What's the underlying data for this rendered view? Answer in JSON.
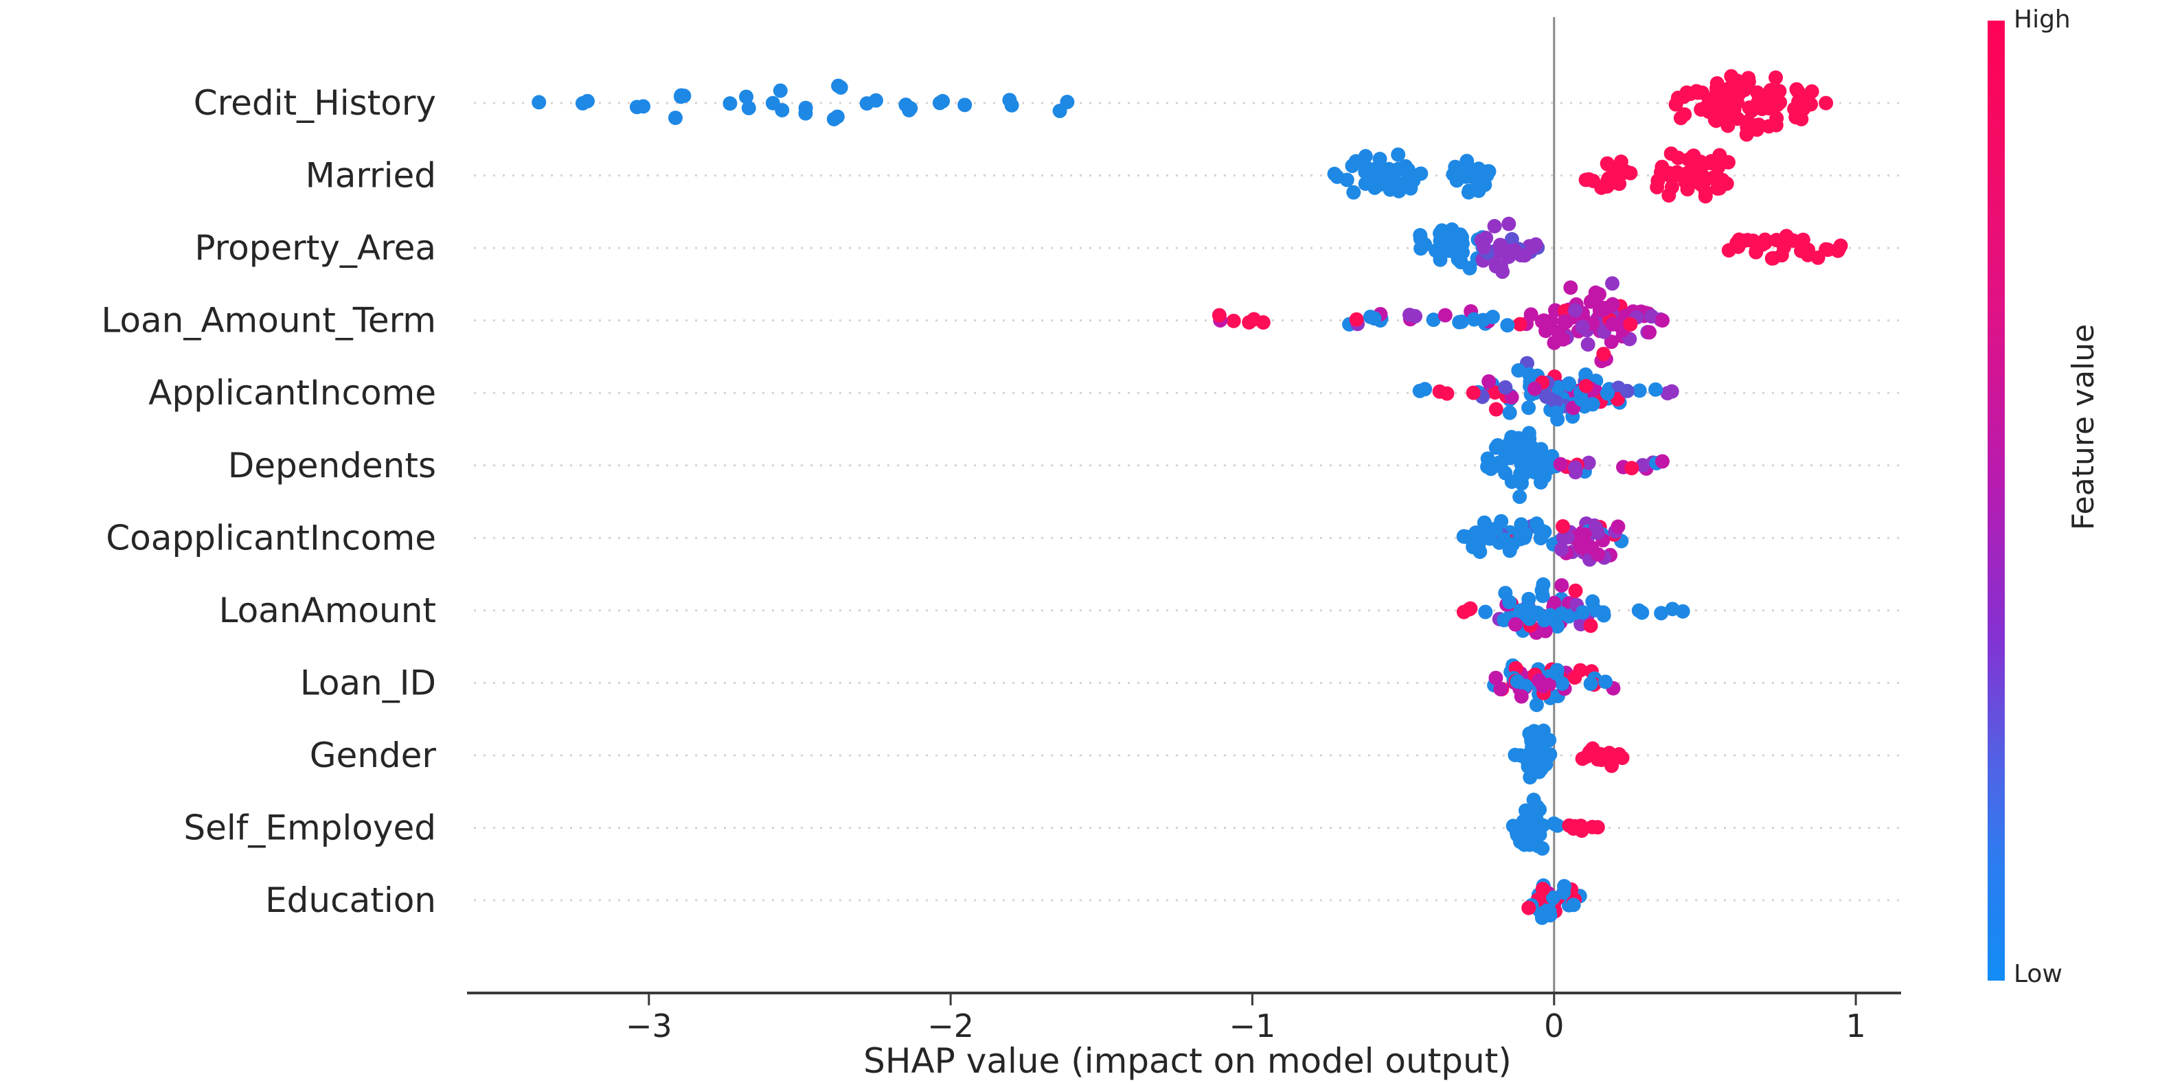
{
  "chart_data": {
    "type": "beeswarm",
    "title": "",
    "xlabel": "SHAP value (impact on model output)",
    "ylabel": "",
    "x_ticks": [
      -3,
      -2,
      -1,
      0,
      1
    ],
    "xlim": [
      -3.58,
      1.15
    ],
    "grid": "dotted-horizontal",
    "legend_position": "right-colorbar",
    "zero_line_color": "#888888",
    "axis_color": "#3a3a3a",
    "gridline_color": "#ddcfcf",
    "colorbar": {
      "label": "Feature value",
      "high_label": "High",
      "low_label": "Low",
      "high_color": "#ff0d57",
      "low_color": "#1e88e5"
    },
    "palette": {
      "blue": "#1e88e5",
      "red": "#ff0d57",
      "purple": "#9334c6",
      "magenta": "#c216a8",
      "violet": "#5e52d3"
    },
    "features": [
      {
        "name": "Credit_History",
        "clusters": [
          {
            "style": "points",
            "color": "blue",
            "positions": [
              [
                -3.38,
                1
              ],
              [
                -3.21,
                2
              ],
              [
                -3.03,
                2
              ],
              [
                -2.89,
                4
              ],
              [
                -2.75,
                1
              ],
              [
                -2.68,
                2
              ],
              [
                -2.57,
                3
              ],
              [
                -2.48,
                2
              ],
              [
                -2.37,
                4
              ],
              [
                -2.27,
                2
              ],
              [
                -2.15,
                3
              ],
              [
                -2.02,
                2
              ],
              [
                -1.95,
                1
              ],
              [
                -1.81,
                2
              ],
              [
                -1.63,
                2
              ]
            ]
          },
          {
            "style": "swarm",
            "x0": 0.33,
            "x1": 0.96,
            "count": 95,
            "spread": 50,
            "colors": {
              "red": 1
            }
          }
        ]
      },
      {
        "name": "Married",
        "clusters": [
          {
            "style": "swarm",
            "x0": -0.76,
            "x1": -0.42,
            "count": 40,
            "spread": 42,
            "colors": {
              "blue": 1
            }
          },
          {
            "style": "swarm",
            "x0": -0.37,
            "x1": -0.18,
            "count": 20,
            "spread": 30,
            "colors": {
              "blue": 1
            }
          },
          {
            "style": "swarm",
            "x0": 0.07,
            "x1": 0.27,
            "count": 18,
            "spread": 30,
            "colors": {
              "red": 1
            }
          },
          {
            "style": "swarm",
            "x0": 0.29,
            "x1": 0.64,
            "count": 40,
            "spread": 42,
            "colors": {
              "red": 1
            }
          }
        ]
      },
      {
        "name": "Property_Area",
        "clusters": [
          {
            "style": "swarm",
            "x0": -0.5,
            "x1": -0.18,
            "count": 35,
            "spread": 40,
            "colors": {
              "blue": 1
            }
          },
          {
            "style": "swarm",
            "x0": -0.3,
            "x1": -0.05,
            "count": 28,
            "spread": 44,
            "colors": {
              "purple": 0.85,
              "violet": 0.15
            }
          },
          {
            "style": "swarm",
            "x0": 0.54,
            "x1": 0.97,
            "count": 30,
            "spread": 26,
            "colors": {
              "red": 1
            }
          }
        ]
      },
      {
        "name": "Loan_Amount_Term",
        "clusters": [
          {
            "style": "strip",
            "x0": -1.14,
            "x1": -0.93,
            "count": 6,
            "spread": 10,
            "colors": {
              "red": 0.7,
              "magenta": 0.3
            }
          },
          {
            "style": "strip",
            "x0": -0.72,
            "x1": -0.3,
            "count": 16,
            "spread": 12,
            "colors": {
              "blue": 0.45,
              "red": 0.25,
              "purple": 0.2,
              "magenta": 0.1
            }
          },
          {
            "style": "strip",
            "x0": -0.28,
            "x1": -0.08,
            "count": 10,
            "spread": 16,
            "colors": {
              "blue": 0.4,
              "magenta": 0.4,
              "red": 0.2
            }
          },
          {
            "style": "swarm",
            "x0": -0.1,
            "x1": 0.37,
            "count": 85,
            "spread": 62,
            "colors": {
              "magenta": 0.78,
              "purple": 0.16,
              "red": 0.06
            }
          }
        ]
      },
      {
        "name": "ApplicantIncome",
        "clusters": [
          {
            "style": "strip",
            "x0": -0.46,
            "x1": -0.32,
            "count": 4,
            "spread": 10,
            "colors": {
              "blue": 0.6,
              "red": 0.4
            }
          },
          {
            "style": "swarm",
            "x0": -0.3,
            "x1": 0.3,
            "count": 70,
            "spread": 52,
            "colors": {
              "blue": 0.6,
              "violet": 0.13,
              "magenta": 0.13,
              "red": 0.14
            }
          },
          {
            "style": "strip",
            "x0": 0.32,
            "x1": 0.42,
            "count": 3,
            "spread": 8,
            "colors": {
              "blue": 0.5,
              "purple": 0.5
            }
          }
        ]
      },
      {
        "name": "Dependents",
        "clusters": [
          {
            "style": "swarm",
            "x0": -0.24,
            "x1": 0.01,
            "count": 55,
            "spread": 56,
            "colors": {
              "blue": 1
            }
          },
          {
            "style": "strip",
            "x0": 0.02,
            "x1": 0.38,
            "count": 14,
            "spread": 14,
            "colors": {
              "purple": 0.35,
              "magenta": 0.25,
              "red": 0.25,
              "blue": 0.15
            }
          }
        ]
      },
      {
        "name": "CoapplicantIncome",
        "clusters": [
          {
            "style": "swarm",
            "x0": -0.35,
            "x1": 0.05,
            "count": 40,
            "spread": 40,
            "colors": {
              "blue": 0.8,
              "violet": 0.1,
              "red": 0.1
            }
          },
          {
            "style": "swarm",
            "x0": -0.03,
            "x1": 0.28,
            "count": 35,
            "spread": 42,
            "colors": {
              "purple": 0.45,
              "magenta": 0.3,
              "blue": 0.15,
              "red": 0.1
            }
          }
        ]
      },
      {
        "name": "LoanAmount",
        "clusters": [
          {
            "style": "strip",
            "x0": -0.36,
            "x1": -0.27,
            "count": 3,
            "spread": 8,
            "colors": {
              "red": 1
            }
          },
          {
            "style": "swarm",
            "x0": -0.24,
            "x1": 0.18,
            "count": 60,
            "spread": 52,
            "colors": {
              "blue": 0.5,
              "purple": 0.25,
              "magenta": 0.15,
              "red": 0.1
            }
          },
          {
            "style": "strip",
            "x0": 0.2,
            "x1": 0.45,
            "count": 5,
            "spread": 6,
            "colors": {
              "blue": 1
            }
          }
        ]
      },
      {
        "name": "Loan_ID",
        "clusters": [
          {
            "style": "swarm",
            "x0": -0.28,
            "x1": 0.21,
            "count": 50,
            "spread": 42,
            "colors": {
              "blue": 0.45,
              "red": 0.3,
              "magenta": 0.25
            }
          }
        ]
      },
      {
        "name": "Gender",
        "clusters": [
          {
            "style": "swarm",
            "x0": -0.14,
            "x1": 0.02,
            "count": 40,
            "spread": 44,
            "colors": {
              "blue": 1
            }
          },
          {
            "style": "swarm",
            "x0": 0.05,
            "x1": 0.25,
            "count": 14,
            "spread": 24,
            "colors": {
              "red": 1
            }
          }
        ]
      },
      {
        "name": "Self_Employed",
        "clusters": [
          {
            "style": "swarm",
            "x0": -0.15,
            "x1": 0.03,
            "count": 40,
            "spread": 46,
            "colors": {
              "blue": 1
            }
          },
          {
            "style": "strip",
            "x0": 0.04,
            "x1": 0.18,
            "count": 7,
            "spread": 8,
            "colors": {
              "red": 1
            }
          }
        ]
      },
      {
        "name": "Education",
        "clusters": [
          {
            "style": "swarm",
            "x0": -0.13,
            "x1": 0.1,
            "count": 30,
            "spread": 30,
            "colors": {
              "blue": 0.72,
              "red": 0.22,
              "magenta": 0.06
            }
          }
        ]
      }
    ]
  }
}
